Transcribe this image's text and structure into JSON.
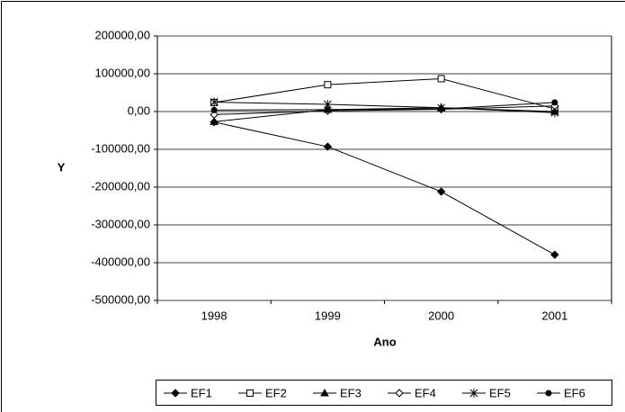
{
  "chart_data": {
    "type": "line",
    "categories": [
      "1998",
      "1999",
      "2000",
      "2001"
    ],
    "x_label": "Ano",
    "y_label": "Y",
    "ylim": [
      -500000,
      200000
    ],
    "yticks": [
      {
        "value": -500000,
        "label": "-500000,00"
      },
      {
        "value": -400000,
        "label": "-400000,00"
      },
      {
        "value": -300000,
        "label": "-300000,00"
      },
      {
        "value": -200000,
        "label": "-200000,00"
      },
      {
        "value": -100000,
        "label": "-100000,00"
      },
      {
        "value": 0,
        "label": "0,00"
      },
      {
        "value": 100000,
        "label": "100000,00"
      },
      {
        "value": 200000,
        "label": "200000,00"
      }
    ],
    "grid": true,
    "legend": "bottom",
    "series": [
      {
        "name": "EF1",
        "color": "#000000",
        "marker": "diamond-filled",
        "values": [
          -28000,
          -93000,
          -212000,
          -379000
        ]
      },
      {
        "name": "EF2",
        "color": "#000000",
        "marker": "square-open",
        "values": [
          24000,
          71000,
          87000,
          7000
        ]
      },
      {
        "name": "EF3",
        "color": "#000000",
        "marker": "triangle-filled",
        "values": [
          -27000,
          5000,
          10000,
          0
        ]
      },
      {
        "name": "EF4",
        "color": "#000000",
        "marker": "diamond-open",
        "values": [
          -8000,
          2000,
          6000,
          15000
        ]
      },
      {
        "name": "EF5",
        "color": "#000000",
        "marker": "asterisk",
        "values": [
          25000,
          19000,
          10000,
          -3000
        ]
      },
      {
        "name": "EF6",
        "color": "#000000",
        "marker": "circle-filled",
        "values": [
          4000,
          5000,
          7000,
          24000
        ]
      }
    ]
  }
}
